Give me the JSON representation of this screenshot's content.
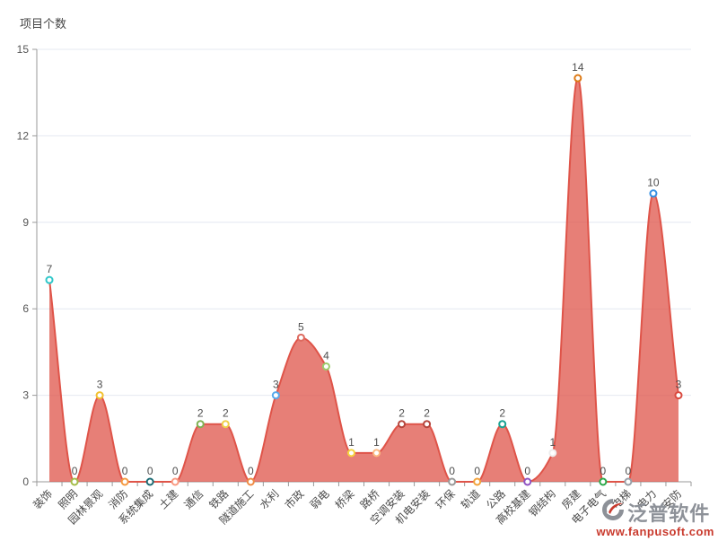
{
  "title": "项目个数",
  "watermark": {
    "brand": "泛普软件",
    "url": "www.fanpusoft.com"
  },
  "chart_data": {
    "type": "area",
    "title": "项目个数",
    "xlabel": "",
    "ylabel": "项目个数",
    "categories": [
      "装饰",
      "照明",
      "园林景观",
      "消防",
      "系统集成",
      "土建",
      "通信",
      "铁路",
      "隧道施工",
      "水利",
      "市政",
      "弱电",
      "桥梁",
      "路桥",
      "空调安装",
      "机电安装",
      "环保",
      "轨道",
      "公路",
      "高校基建",
      "钢结构",
      "房建",
      "电子电气",
      "电梯",
      "电力",
      "安防"
    ],
    "values": [
      7,
      0,
      3,
      0,
      0,
      0,
      2,
      2,
      0,
      3,
      5,
      4,
      1,
      1,
      2,
      2,
      0,
      0,
      2,
      0,
      1,
      14,
      0,
      0,
      10,
      3
    ],
    "point_colors": [
      "#2ec7c9",
      "#a4bd4a",
      "#f2c12e",
      "#f59a42",
      "#1b6b74",
      "#f99a82",
      "#7fb254",
      "#f0cf4a",
      "#ef8b44",
      "#57aaec",
      "#dd6b60",
      "#9ccc6c",
      "#f5d43e",
      "#fcb880",
      "#b5453c",
      "#b5453c",
      "#9a9a9a",
      "#f2a33c",
      "#18a393",
      "#8f52c2",
      "#ededed",
      "#dd7a16",
      "#2ca94a",
      "#98a0a8",
      "#338fe3",
      "#d94a3f"
    ],
    "ylim": [
      0,
      15
    ],
    "yticks": [
      0,
      3,
      6,
      9,
      12,
      15
    ],
    "grid": true,
    "smooth": true,
    "legend_position": "none",
    "line_color": "#df5449",
    "area_color": "rgba(223,84,73,0.75)",
    "axis_color": "#999999",
    "gridline_color": "#e4e8f1",
    "label_color": "#4d4d4d",
    "tick_label_color": "#555555"
  }
}
